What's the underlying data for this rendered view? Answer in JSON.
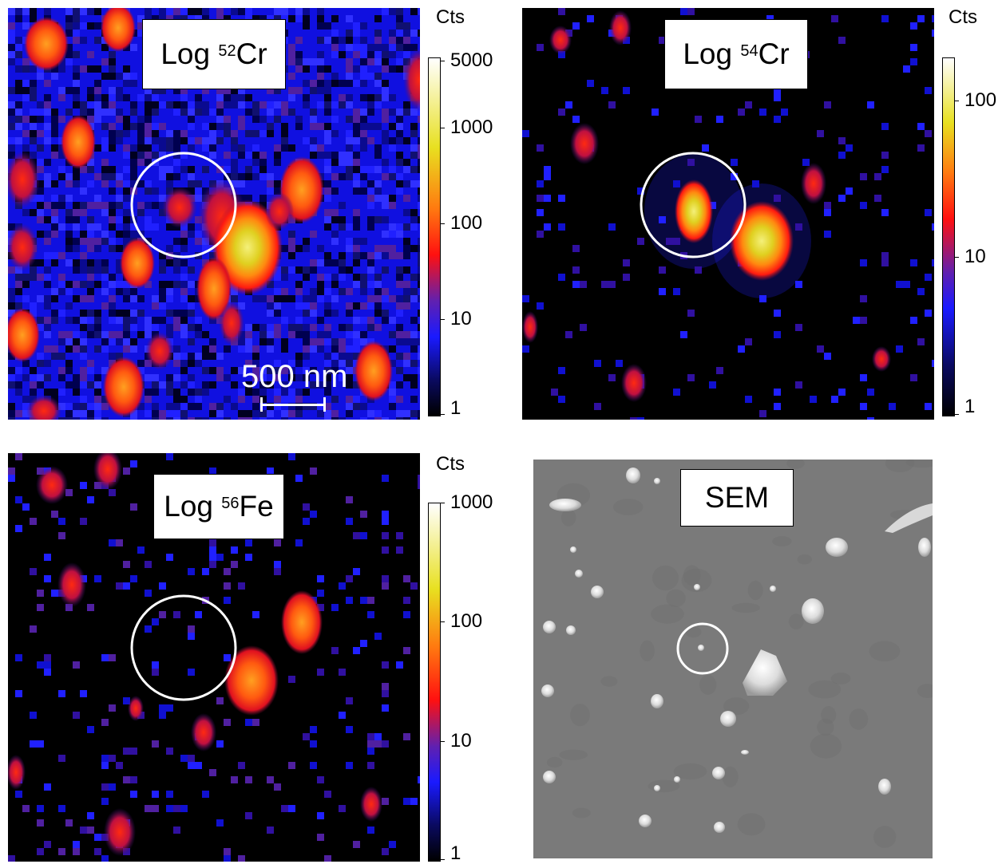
{
  "panels": [
    {
      "id": "cr52",
      "label_prefix": "Log ",
      "label_isotope": "52",
      "label_element": "Cr",
      "colorbar_title": "Cts",
      "colorbar_ticks": [
        "5000",
        "1000",
        "100",
        "10",
        "1"
      ],
      "scalebar_label": "500 nm"
    },
    {
      "id": "cr54",
      "label_prefix": "Log ",
      "label_isotope": "54",
      "label_element": "Cr",
      "colorbar_title": "Cts",
      "colorbar_ticks": [
        "100",
        "10",
        "1"
      ]
    },
    {
      "id": "fe56",
      "label_prefix": "Log ",
      "label_isotope": "56",
      "label_element": "Fe",
      "colorbar_title": "Cts",
      "colorbar_ticks": [
        "1000",
        "100",
        "10",
        "1"
      ]
    },
    {
      "id": "sem",
      "label": "SEM"
    }
  ],
  "colors": {
    "heat_low": "#000000",
    "heat_blue": "#1010ff",
    "heat_purple": "#7020a0",
    "heat_red": "#ff1010",
    "heat_orange": "#ff8c10",
    "heat_yellow": "#f0f020",
    "heat_white": "#ffffff",
    "sem_gray": "#7a7a7a",
    "circle": "#ffffff"
  }
}
